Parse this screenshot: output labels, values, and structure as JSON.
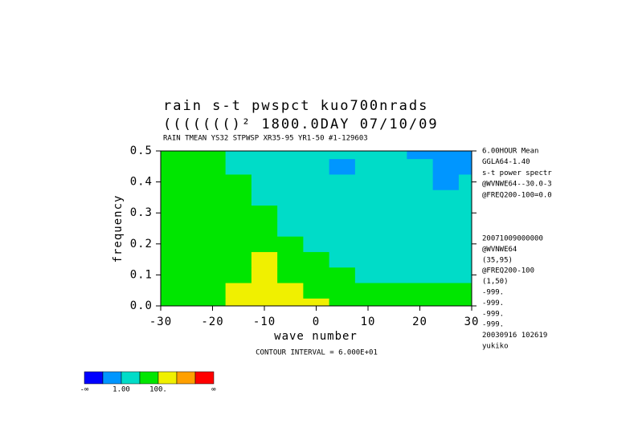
{
  "chart_data": {
    "type": "contour",
    "title": "rain s-t pwspct    kuo700nrads",
    "subtitle": "((((((()² 1800.0DAY 07/10/09",
    "header": "RAIN TMEAN YS32 STPWSP XR35-95 YR1-50       #1-129603",
    "x_label": "wave number",
    "y_label": "frequency",
    "footer": "CONTOUR INTERVAL = 6.000E+01",
    "xlim": [
      -30,
      30
    ],
    "xticks": [
      -30,
      -20,
      -10,
      0,
      10,
      20,
      30
    ],
    "ylim": [
      0,
      0.5
    ],
    "yticks": [
      {
        "value": 0,
        "label": "0.0"
      },
      0.1,
      0.2,
      0.3,
      0.4,
      0.5
    ],
    "x": [
      -30,
      -25,
      -20,
      -15,
      -10,
      -5,
      0,
      5,
      10,
      15,
      20,
      25,
      30
    ],
    "y": [
      0,
      0.05,
      0.1,
      0.15,
      0.2,
      0.25,
      0.3,
      0.35,
      0.4,
      0.45,
      0.5
    ],
    "z": [
      [
        40,
        60,
        80,
        150,
        200,
        200,
        150,
        60,
        30,
        20,
        20,
        20,
        20
      ],
      [
        40,
        50,
        60,
        120,
        200,
        150,
        60,
        30,
        20,
        20,
        15,
        20,
        15
      ],
      [
        40,
        40,
        50,
        60,
        150,
        60,
        30,
        20,
        8,
        6,
        6,
        8,
        8
      ],
      [
        30,
        40,
        40,
        50,
        120,
        40,
        20,
        8,
        5,
        5,
        5,
        5,
        5
      ],
      [
        30,
        30,
        40,
        30,
        30,
        20,
        8,
        5,
        5,
        5,
        5,
        5,
        5
      ],
      [
        30,
        30,
        30,
        20,
        20,
        8,
        5,
        5,
        5,
        5,
        5,
        4,
        4
      ],
      [
        30,
        30,
        20,
        20,
        20,
        8,
        5,
        5,
        5,
        4,
        4,
        4,
        4
      ],
      [
        20,
        20,
        20,
        20,
        8,
        5,
        5,
        5,
        5,
        4,
        4,
        4,
        4
      ],
      [
        20,
        20,
        20,
        20,
        8,
        5,
        5,
        5,
        4,
        4,
        4,
        0.5,
        4
      ],
      [
        20,
        20,
        20,
        8,
        5,
        5,
        5,
        0.5,
        4,
        4,
        4,
        0.5,
        0.5
      ],
      [
        20,
        20,
        20,
        8,
        5,
        5,
        5,
        5,
        4,
        4,
        0.5,
        0.5,
        0.5
      ]
    ],
    "colors": [
      "#0000ff",
      "#0096ff",
      "#00dcc8",
      "#00e600",
      "#f0f000",
      "#ffa000",
      "#ff0000"
    ],
    "boundaries": [
      0.1,
      1,
      10,
      100,
      1000,
      10000
    ],
    "boundary_labels": [
      null,
      "1.00",
      null,
      "100.",
      null,
      null
    ],
    "colorbar_ends": [
      "-∞",
      "∞"
    ],
    "notes_top": [
      "6.00HOUR Mean",
      "GGLA64-1.40",
      "s-t power spectr",
      "@WVNWE64--30.0-3",
      "@FREQ200-100=0.0"
    ],
    "notes_bottom": [
      "20071009000000",
      "@WVNWE64",
      "(35,95)",
      "@FREQ200-100",
      "(1,50)",
      "-999.",
      "-999.",
      "-999.",
      "-999.",
      "20030916 102619",
      "yukiko"
    ]
  }
}
